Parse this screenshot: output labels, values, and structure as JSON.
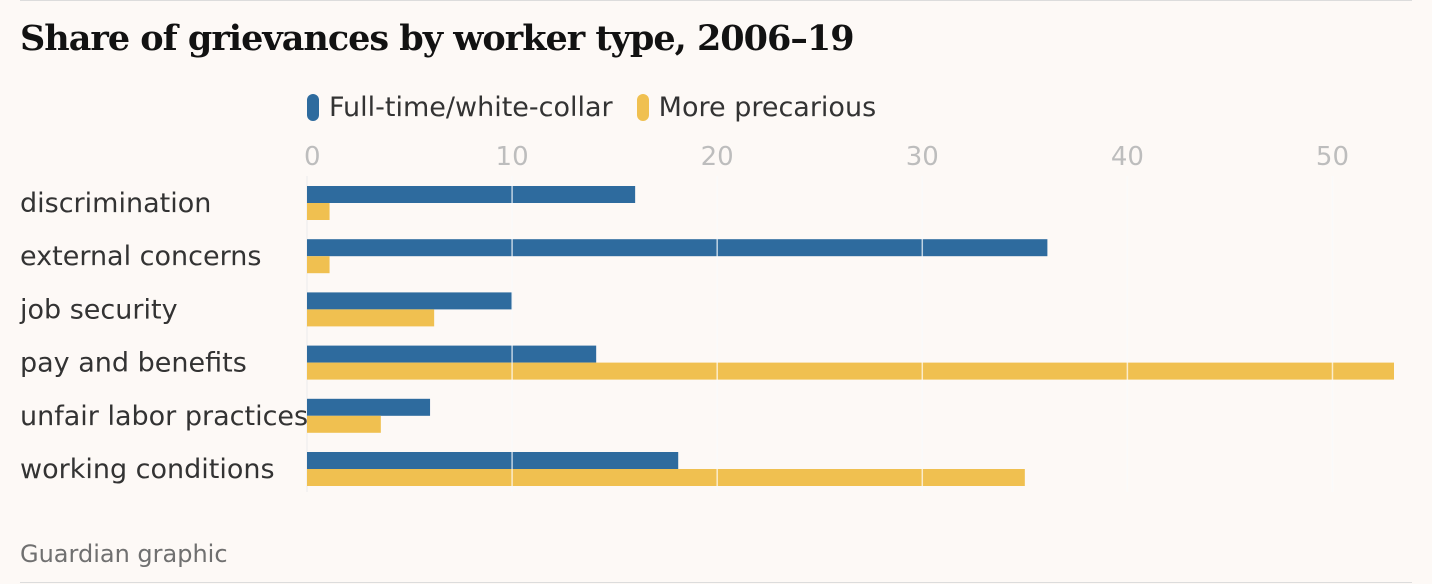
{
  "title": "Share of grievances by worker type, 2006–19",
  "source": "Guardian graphic",
  "colors": {
    "full_time": "#2e6b9e",
    "precarious": "#f0c050",
    "tick_label": "#bdbdbd",
    "category_label": "#333333",
    "grid": "#ececec"
  },
  "legend": [
    {
      "label": "Full-time/white-collar",
      "color": "#2e6b9e"
    },
    {
      "label": "More precarious",
      "color": "#f0c050"
    }
  ],
  "chart_data": {
    "type": "bar",
    "orientation": "horizontal",
    "title": "Share of grievances by worker type, 2006–19",
    "categories": [
      "discrimination",
      "external concerns",
      "job security",
      "pay and benefits",
      "unfair labor practices",
      "working conditions"
    ],
    "series": [
      {
        "name": "Full-time/white-collar",
        "color": "#2e6b9e",
        "values": [
          16,
          36.1,
          10,
          14.1,
          6,
          18.1
        ]
      },
      {
        "name": "More precarious",
        "color": "#f0c050",
        "values": [
          1.1,
          1.1,
          6.2,
          53,
          3.6,
          35
        ]
      }
    ],
    "xlim": [
      0,
      53
    ],
    "xticks": [
      0,
      10,
      20,
      30,
      40,
      50
    ],
    "x_axis_position": "top",
    "grid": true,
    "legend_position": "top"
  }
}
